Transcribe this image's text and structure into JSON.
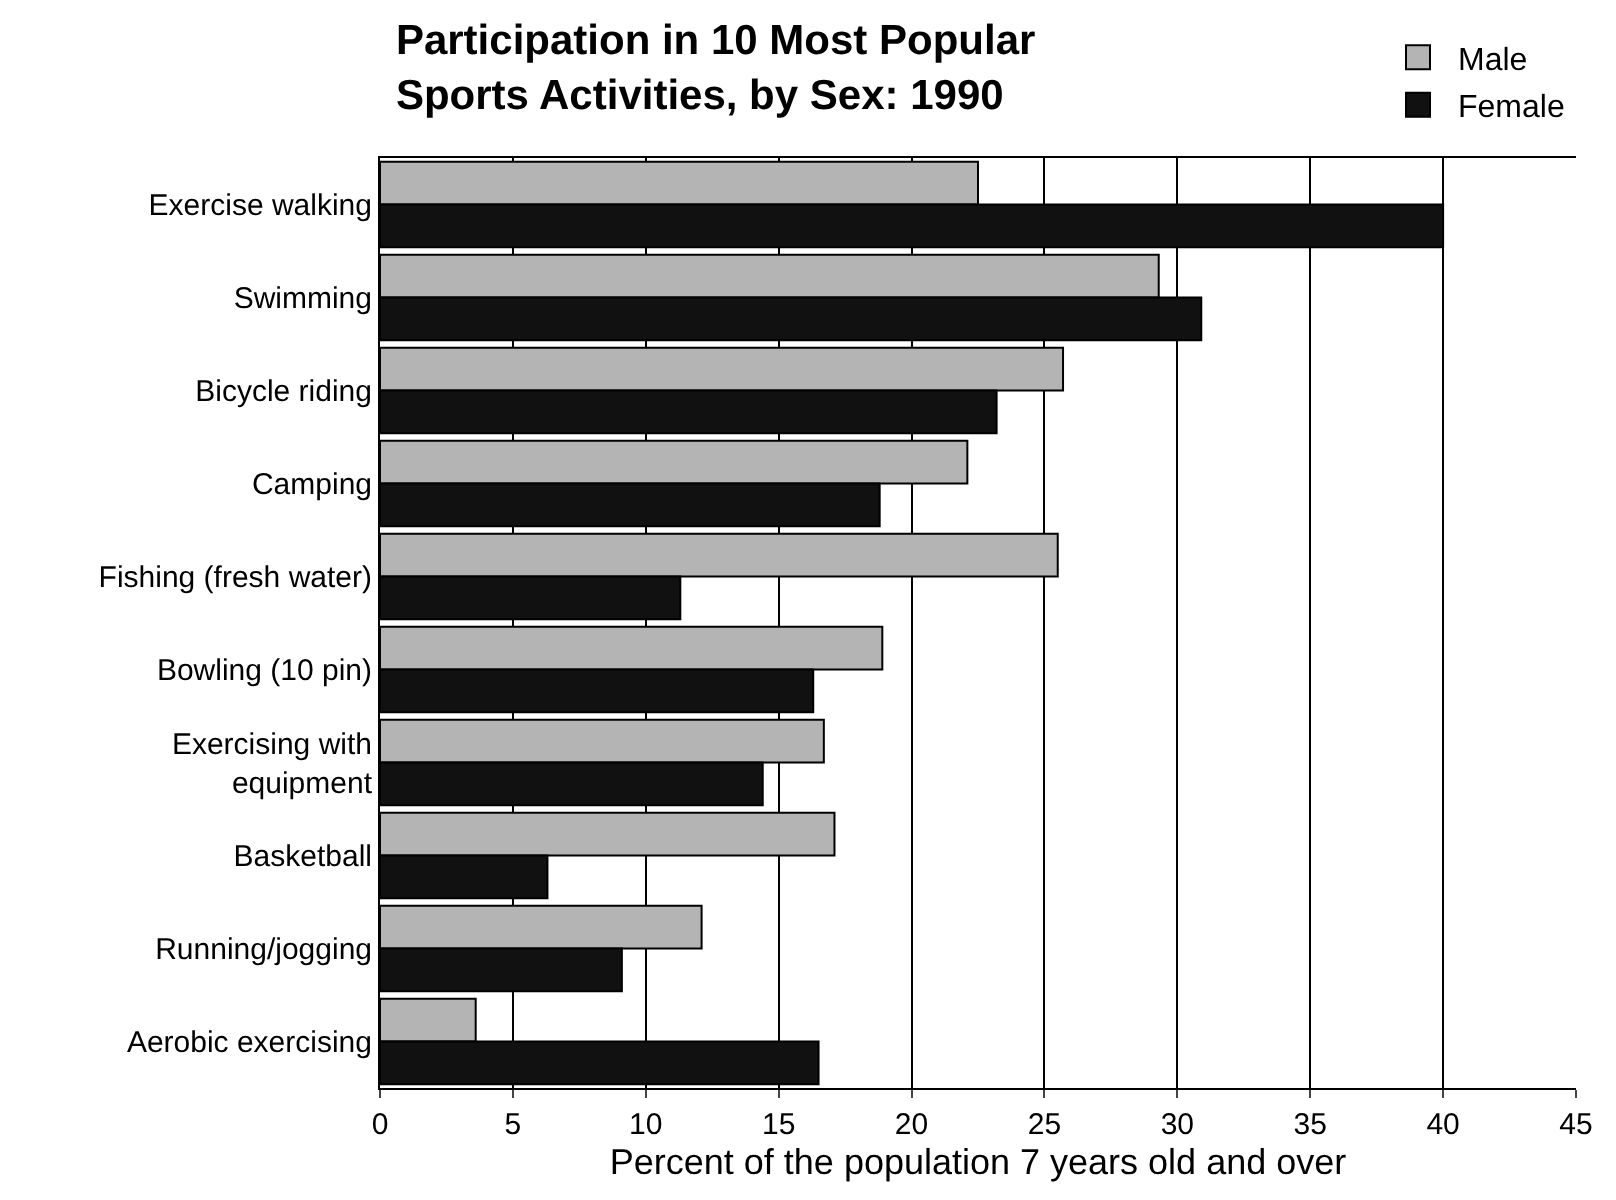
{
  "chart_data": {
    "type": "bar",
    "orientation": "horizontal",
    "title": "Participation in 10 Most Popular\nSports Activities, by Sex: 1990",
    "xlabel": "Percent of the population 7 years old and over",
    "categories": [
      "Exercise walking",
      "Swimming",
      "Bicycle riding",
      "Camping",
      "Fishing (fresh water)",
      "Bowling (10 pin)",
      "Exercising with\nequipment",
      "Basketball",
      "Running/jogging",
      "Aerobic exercising"
    ],
    "series": [
      {
        "name": "Male",
        "color": "#b4b4b4",
        "values": [
          22.5,
          29.3,
          25.7,
          22.1,
          25.5,
          18.9,
          16.7,
          17.1,
          12.1,
          3.6
        ]
      },
      {
        "name": "Female",
        "color": "#111111",
        "values": [
          40,
          30.9,
          23.2,
          18.8,
          11.3,
          16.3,
          14.4,
          6.3,
          9.1,
          16.5
        ]
      }
    ],
    "xlim": [
      0,
      45
    ],
    "xticks": [
      0,
      5,
      10,
      15,
      20,
      25,
      30,
      35,
      40,
      45
    ],
    "grid": "x",
    "legend": "top right"
  }
}
